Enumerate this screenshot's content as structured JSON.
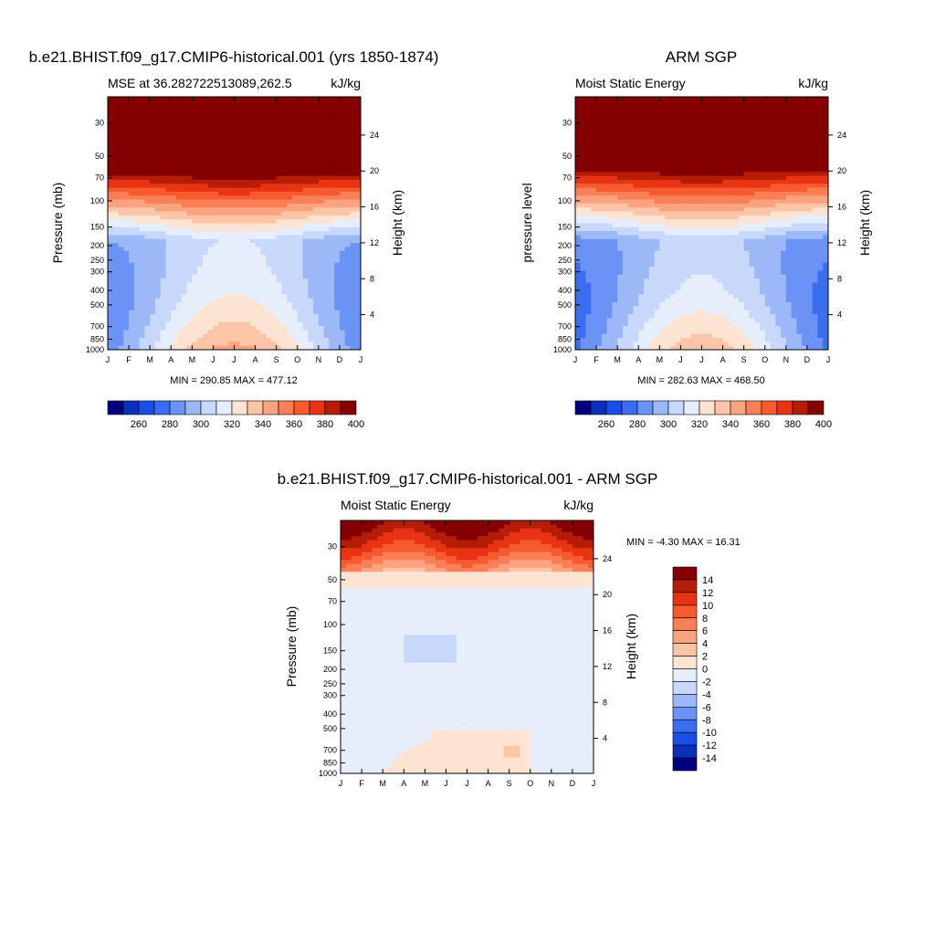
{
  "colors": {
    "palette": [
      "#00007f",
      "#0a2fb8",
      "#1a4ee8",
      "#3a6df0",
      "#6a93f5",
      "#9db8f7",
      "#c8d8fa",
      "#e6eefc",
      "#fde3d2",
      "#fcc5a8",
      "#fba380",
      "#fa7f56",
      "#f65a2e",
      "#e83414",
      "#b51d06",
      "#850000"
    ],
    "panel_border": "#000000"
  },
  "chart_data": [
    {
      "type": "heatmap",
      "title": "b.e21.BHIST.f09_g17.CMIP6-historical.001 (yrs 1850-1874)",
      "left_label": "MSE at 36.282722513089,262.5",
      "right_label": "kJ/kg",
      "ylabel": "Pressure (mb)",
      "ylabel_right": "Height (km)",
      "x_months": [
        "J",
        "F",
        "M",
        "A",
        "M",
        "J",
        "J",
        "A",
        "S",
        "O",
        "N",
        "D",
        "J"
      ],
      "pressure_ticks": [
        "30",
        "50",
        "70",
        "100",
        "150",
        "200",
        "250",
        "300",
        "400",
        "500",
        "700",
        "850",
        "1000"
      ],
      "height_ticks": [
        "24",
        "20",
        "16",
        "12",
        "8",
        "4"
      ],
      "stats": "MIN = 290.85 MAX = 477.12",
      "colorbar_labels": [
        "260",
        "280",
        "300",
        "320",
        "340",
        "360",
        "380",
        "400"
      ],
      "field": "mse"
    },
    {
      "type": "heatmap",
      "title": "ARM SGP",
      "left_label": "Moist Static Energy",
      "right_label": "kJ/kg",
      "ylabel": "pressure level",
      "ylabel_right": "Height (km)",
      "x_months": [
        "J",
        "F",
        "M",
        "A",
        "M",
        "J",
        "J",
        "A",
        "S",
        "O",
        "N",
        "D",
        "J"
      ],
      "pressure_ticks": [
        "30",
        "50",
        "70",
        "100",
        "150",
        "200",
        "250",
        "300",
        "400",
        "500",
        "700",
        "850",
        "1000"
      ],
      "height_ticks": [
        "24",
        "20",
        "16",
        "12",
        "8",
        "4"
      ],
      "stats": "MIN = 282.63 MAX = 468.50",
      "colorbar_labels": [
        "260",
        "280",
        "300",
        "320",
        "340",
        "360",
        "380",
        "400"
      ],
      "field": "mse"
    },
    {
      "type": "heatmap",
      "title": "b.e21.BHIST.f09_g17.CMIP6-historical.001 - ARM SGP",
      "left_label": "Moist Static Energy",
      "right_label": "kJ/kg",
      "ylabel": "Pressure (mb)",
      "ylabel_right": "Height (km)",
      "x_months": [
        "J",
        "F",
        "M",
        "A",
        "M",
        "J",
        "J",
        "A",
        "S",
        "O",
        "N",
        "D",
        "J"
      ],
      "pressure_ticks": [
        "30",
        "50",
        "70",
        "100",
        "150",
        "200",
        "250",
        "300",
        "400",
        "500",
        "700",
        "850",
        "1000"
      ],
      "height_ticks": [
        "24",
        "20",
        "16",
        "12",
        "8",
        "4"
      ],
      "stats": "MIN =  -4.30 MAX =  16.31",
      "colorbar_labels": [
        "14",
        "12",
        "10",
        "8",
        "6",
        "4",
        "2",
        "0",
        "-2",
        "-4",
        "-6",
        "-8",
        "-10",
        "-12",
        "-14"
      ],
      "field": "diff"
    }
  ]
}
